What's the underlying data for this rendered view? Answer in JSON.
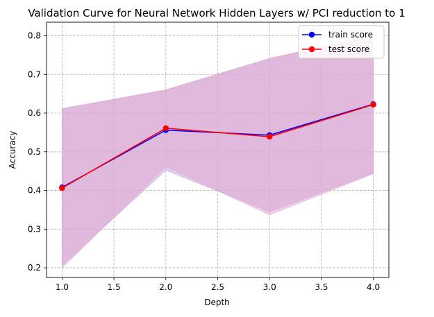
{
  "chart_data": {
    "type": "line",
    "title": "Validation Curve for Neural Network Hidden Layers w/ PCI reduction to 1",
    "xlabel": "Depth",
    "ylabel": "Accuracy",
    "xlim": [
      0.85,
      4.15
    ],
    "ylim": [
      0.175,
      0.835
    ],
    "x": [
      1.0,
      2.0,
      3.0,
      4.0
    ],
    "xticks": [
      1.0,
      1.5,
      2.0,
      2.5,
      3.0,
      3.5,
      4.0
    ],
    "xtick_labels": [
      "1.0",
      "1.5",
      "2.0",
      "2.5",
      "3.0",
      "3.5",
      "4.0"
    ],
    "yticks": [
      0.2,
      0.3,
      0.4,
      0.5,
      0.6,
      0.7,
      0.8
    ],
    "ytick_labels": [
      "0.2",
      "0.3",
      "0.4",
      "0.5",
      "0.6",
      "0.7",
      "0.8"
    ],
    "grid": true,
    "legend_position": "top-right",
    "series": [
      {
        "name": "train score",
        "color": "#0000ff",
        "values": [
          0.408,
          0.556,
          0.543,
          0.623
        ],
        "band_lower": [
          0.206,
          0.452,
          0.345,
          0.445
        ],
        "band_upper": [
          0.61,
          0.66,
          0.741,
          0.801
        ],
        "band_color": "#c4a8d8"
      },
      {
        "name": "test score",
        "color": "#ff0000",
        "values": [
          0.406,
          0.561,
          0.539,
          0.622
        ],
        "band_lower": [
          0.2,
          0.462,
          0.337,
          0.443
        ],
        "band_upper": [
          0.612,
          0.66,
          0.741,
          0.801
        ],
        "band_color": "#e0a8d0"
      }
    ]
  }
}
